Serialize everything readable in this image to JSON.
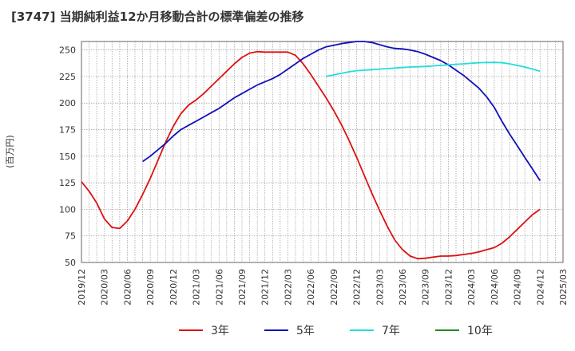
{
  "chart_data": {
    "type": "line",
    "title": "[3747]  当期純利益12か月移動合計の標準偏差の推移",
    "ylabel": "(百万円)",
    "xlabel": "",
    "ylim": [
      50,
      258
    ],
    "yticks": [
      50,
      75,
      100,
      125,
      150,
      175,
      200,
      225,
      250
    ],
    "xlim": [
      "2019-12",
      "2025-03"
    ],
    "xticks": [
      "2019/12",
      "2020/03",
      "2020/06",
      "2020/09",
      "2020/12",
      "2021/03",
      "2021/06",
      "2021/09",
      "2021/12",
      "2022/03",
      "2022/06",
      "2022/09",
      "2022/12",
      "2023/03",
      "2023/06",
      "2023/09",
      "2023/12",
      "2024/03",
      "2024/06",
      "2024/09",
      "2024/12",
      "2025/03"
    ],
    "grid": true,
    "legend_position": "bottom",
    "series": [
      {
        "name": "3年",
        "color": "#dd1111",
        "points": [
          [
            "2019-12",
            126
          ],
          [
            "2020-01",
            117
          ],
          [
            "2020-02",
            106
          ],
          [
            "2020-03",
            91
          ],
          [
            "2020-04",
            83
          ],
          [
            "2020-05",
            82
          ],
          [
            "2020-06",
            89
          ],
          [
            "2020-07",
            100
          ],
          [
            "2020-08",
            114
          ],
          [
            "2020-09",
            129
          ],
          [
            "2020-10",
            146
          ],
          [
            "2020-11",
            163
          ],
          [
            "2020-12",
            178
          ],
          [
            "2021-01",
            190
          ],
          [
            "2021-02",
            198
          ],
          [
            "2021-03",
            203
          ],
          [
            "2021-04",
            209
          ],
          [
            "2021-05",
            216
          ],
          [
            "2021-06",
            223
          ],
          [
            "2021-07",
            230
          ],
          [
            "2021-08",
            237
          ],
          [
            "2021-09",
            243
          ],
          [
            "2021-10",
            247
          ],
          [
            "2021-11",
            248.5
          ],
          [
            "2021-12",
            248
          ],
          [
            "2022-01",
            248
          ],
          [
            "2022-02",
            248
          ],
          [
            "2022-03",
            248
          ],
          [
            "2022-04",
            245
          ],
          [
            "2022-05",
            237
          ],
          [
            "2022-06",
            227
          ],
          [
            "2022-07",
            216
          ],
          [
            "2022-08",
            205
          ],
          [
            "2022-09",
            193
          ],
          [
            "2022-10",
            180
          ],
          [
            "2022-11",
            165
          ],
          [
            "2022-12",
            149
          ],
          [
            "2023-01",
            132
          ],
          [
            "2023-02",
            115
          ],
          [
            "2023-03",
            99
          ],
          [
            "2023-04",
            84
          ],
          [
            "2023-05",
            71
          ],
          [
            "2023-06",
            62
          ],
          [
            "2023-07",
            56
          ],
          [
            "2023-08",
            53.5
          ],
          [
            "2023-09",
            54
          ],
          [
            "2023-10",
            55
          ],
          [
            "2023-11",
            56
          ],
          [
            "2023-12",
            56
          ],
          [
            "2024-01",
            56.5
          ],
          [
            "2024-02",
            57.5
          ],
          [
            "2024-03",
            58.5
          ],
          [
            "2024-04",
            60
          ],
          [
            "2024-05",
            62
          ],
          [
            "2024-06",
            64
          ],
          [
            "2024-07",
            68
          ],
          [
            "2024-08",
            74
          ],
          [
            "2024-09",
            81
          ],
          [
            "2024-10",
            88
          ],
          [
            "2024-11",
            95
          ],
          [
            "2024-12",
            100
          ]
        ]
      },
      {
        "name": "5年",
        "color": "#1111bb",
        "points": [
          [
            "2020-08",
            145
          ],
          [
            "2020-09",
            150
          ],
          [
            "2020-10",
            156
          ],
          [
            "2020-11",
            162
          ],
          [
            "2020-12",
            169
          ],
          [
            "2021-01",
            175
          ],
          [
            "2021-02",
            179
          ],
          [
            "2021-03",
            183
          ],
          [
            "2021-04",
            187
          ],
          [
            "2021-05",
            191
          ],
          [
            "2021-06",
            195
          ],
          [
            "2021-07",
            200
          ],
          [
            "2021-08",
            205
          ],
          [
            "2021-09",
            209
          ],
          [
            "2021-10",
            213
          ],
          [
            "2021-11",
            217
          ],
          [
            "2021-12",
            220
          ],
          [
            "2022-01",
            223
          ],
          [
            "2022-02",
            227
          ],
          [
            "2022-03",
            232
          ],
          [
            "2022-04",
            237
          ],
          [
            "2022-05",
            242
          ],
          [
            "2022-06",
            246
          ],
          [
            "2022-07",
            250
          ],
          [
            "2022-08",
            253
          ],
          [
            "2022-09",
            254.5
          ],
          [
            "2022-10",
            256
          ],
          [
            "2022-11",
            257
          ],
          [
            "2022-12",
            258
          ],
          [
            "2023-01",
            258
          ],
          [
            "2023-02",
            257
          ],
          [
            "2023-03",
            255
          ],
          [
            "2023-04",
            253
          ],
          [
            "2023-05",
            251.5
          ],
          [
            "2023-06",
            251
          ],
          [
            "2023-07",
            250
          ],
          [
            "2023-08",
            248.5
          ],
          [
            "2023-09",
            246
          ],
          [
            "2023-10",
            243
          ],
          [
            "2023-11",
            240
          ],
          [
            "2023-12",
            236
          ],
          [
            "2024-01",
            231
          ],
          [
            "2024-02",
            226
          ],
          [
            "2024-03",
            220
          ],
          [
            "2024-04",
            214
          ],
          [
            "2024-05",
            206
          ],
          [
            "2024-06",
            196
          ],
          [
            "2024-07",
            183
          ],
          [
            "2024-08",
            171
          ],
          [
            "2024-09",
            160
          ],
          [
            "2024-10",
            149
          ],
          [
            "2024-11",
            138
          ],
          [
            "2024-12",
            127
          ]
        ]
      },
      {
        "name": "7年",
        "color": "#22dddd",
        "points": [
          [
            "2022-08",
            225
          ],
          [
            "2022-09",
            226.5
          ],
          [
            "2022-10",
            228
          ],
          [
            "2022-11",
            229.5
          ],
          [
            "2022-12",
            230.5
          ],
          [
            "2023-01",
            231
          ],
          [
            "2023-02",
            231.5
          ],
          [
            "2023-03",
            232
          ],
          [
            "2023-04",
            232.5
          ],
          [
            "2023-05",
            233
          ],
          [
            "2023-06",
            233.5
          ],
          [
            "2023-07",
            234
          ],
          [
            "2023-08",
            234.2
          ],
          [
            "2023-09",
            234.5
          ],
          [
            "2023-10",
            235
          ],
          [
            "2023-11",
            235.5
          ],
          [
            "2023-12",
            236
          ],
          [
            "2024-01",
            236.5
          ],
          [
            "2024-02",
            237
          ],
          [
            "2024-03",
            237.5
          ],
          [
            "2024-04",
            238
          ],
          [
            "2024-05",
            238.2
          ],
          [
            "2024-06",
            238.3
          ],
          [
            "2024-07",
            238
          ],
          [
            "2024-08",
            237
          ],
          [
            "2024-09",
            235.5
          ],
          [
            "2024-10",
            234
          ],
          [
            "2024-11",
            232
          ],
          [
            "2024-12",
            230
          ]
        ]
      },
      {
        "name": "10年",
        "color": "#228822",
        "points": []
      }
    ]
  }
}
